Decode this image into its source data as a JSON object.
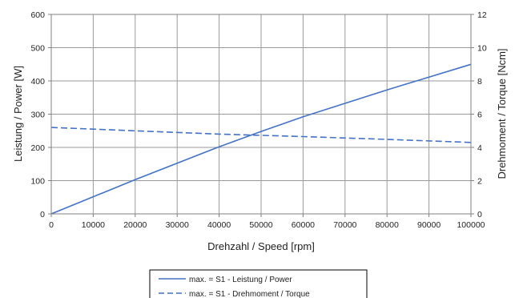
{
  "chart_data": {
    "type": "line",
    "xlabel": "Drehzahl / Speed [rpm]",
    "ylabel": "Leistung / Power [W]",
    "y2label": "Drehmoment / Torque [Ncm]",
    "xlim": [
      0,
      100000
    ],
    "ylim": [
      0,
      600
    ],
    "y2lim": [
      0,
      12
    ],
    "xticks": [
      "0",
      "10000",
      "20000",
      "30000",
      "40000",
      "50000",
      "60000",
      "70000",
      "80000",
      "90000",
      "100000"
    ],
    "yticks": [
      "0",
      "100",
      "200",
      "300",
      "400",
      "500",
      "600"
    ],
    "y2ticks": [
      "0",
      "2",
      "4",
      "6",
      "8",
      "10",
      "12"
    ],
    "grid": true,
    "legend_position": "bottom-center",
    "series": [
      {
        "name": "max. = S1 - Leistung / Power",
        "axis": "left",
        "style": "solid",
        "color": "#4472c4",
        "x": [
          0,
          20000,
          40000,
          50000,
          60000,
          80000,
          100000
        ],
        "values": [
          0,
          103,
          202,
          248,
          292,
          373,
          450
        ]
      },
      {
        "name": "max. = S1 - Drehmoment / Torque",
        "axis": "right",
        "style": "dashed",
        "color": "#4472c4",
        "x": [
          0,
          20000,
          40000,
          60000,
          80000,
          100000
        ],
        "values": [
          5.2,
          5.0,
          4.8,
          4.65,
          4.48,
          4.3
        ]
      }
    ]
  }
}
